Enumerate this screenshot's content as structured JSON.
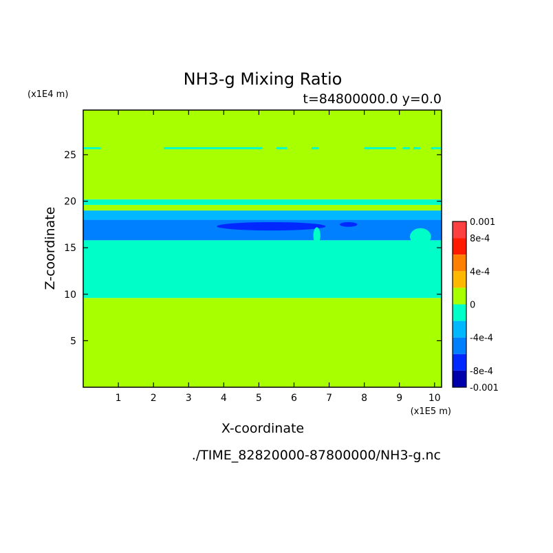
{
  "chart_data": {
    "type": "heatmap",
    "title": "NH3-g Mixing Ratio",
    "subtitle": "t=84800000.0 y=0.0",
    "xlabel": "X-coordinate",
    "ylabel": "Z-coordinate",
    "x_unit": "(x1E5 m)",
    "y_unit": "(x1E4 m)",
    "xlim": [
      0,
      10.2
    ],
    "ylim": [
      0,
      29.8
    ],
    "x_ticks": [
      "1",
      "2",
      "3",
      "4",
      "5",
      "6",
      "7",
      "8",
      "9",
      "10"
    ],
    "y_ticks": [
      "5",
      "10",
      "15",
      "20",
      "25"
    ],
    "source": "./TIME_82820000-87800000/NH3-g.nc",
    "colorbar": {
      "labels": [
        "0.001",
        "8e-4",
        "4e-4",
        "0",
        "-4e-4",
        "-8e-4",
        "-0.001"
      ],
      "label_values": [
        0.001,
        0.0008,
        0.0004,
        0,
        -0.0004,
        -0.0008,
        -0.001
      ],
      "levels": [
        {
          "min": 0.0008,
          "max": 0.001,
          "color": "#ff4040"
        },
        {
          "min": 0.0006,
          "max": 0.0008,
          "color": "#ff1a00"
        },
        {
          "min": 0.0004,
          "max": 0.0006,
          "color": "#ff8000"
        },
        {
          "min": 0.0002,
          "max": 0.0004,
          "color": "#ffb800"
        },
        {
          "min": 0,
          "max": 0.0002,
          "color": "#a8ff00"
        },
        {
          "min": -0.0002,
          "max": 0,
          "color": "#00ffc8"
        },
        {
          "min": -0.0004,
          "max": -0.0002,
          "color": "#00b8ff"
        },
        {
          "min": -0.0006,
          "max": -0.0004,
          "color": "#0080ff"
        },
        {
          "min": -0.0008,
          "max": -0.0006,
          "color": "#0028ff"
        },
        {
          "min": -0.001,
          "max": -0.0008,
          "color": "#0000aa"
        }
      ]
    },
    "bands": [
      {
        "z_min": 0,
        "z_max": 9.6,
        "level": 4
      },
      {
        "z_min": 9.6,
        "z_max": 15.8,
        "level": 5
      },
      {
        "z_min": 15.8,
        "z_max": 18.0,
        "level": 7
      },
      {
        "z_min": 18.0,
        "z_max": 19.0,
        "level": 6
      },
      {
        "z_min": 19.0,
        "z_max": 19.6,
        "level": 4
      },
      {
        "z_min": 19.6,
        "z_max": 20.2,
        "level": 5
      },
      {
        "z_min": 20.2,
        "z_max": 29.8,
        "level": 4
      }
    ],
    "features": [
      {
        "kind": "dash-line",
        "z": 25.7,
        "level": 5,
        "segments": [
          [
            0,
            0.5
          ],
          [
            2.3,
            3.0
          ],
          [
            2.7,
            5.1
          ],
          [
            5.5,
            5.8
          ],
          [
            6.5,
            6.7
          ],
          [
            8.0,
            8.9
          ],
          [
            9.1,
            9.3
          ],
          [
            9.4,
            9.6
          ],
          [
            9.9,
            10.2
          ]
        ]
      },
      {
        "kind": "blob",
        "level": 8,
        "x_min": 3.8,
        "x_max": 6.9,
        "z_center": 17.3,
        "half_height": 0.45
      },
      {
        "kind": "blob",
        "level": 8,
        "x_min": 7.3,
        "x_max": 7.8,
        "z_center": 17.5,
        "half_height": 0.25
      },
      {
        "kind": "blob",
        "level": 5,
        "x_min": 9.3,
        "x_max": 9.9,
        "z_center": 16.2,
        "half_height": 0.9
      },
      {
        "kind": "blob",
        "level": 5,
        "x_min": 6.55,
        "x_max": 6.75,
        "z_center": 16.3,
        "half_height": 0.9
      }
    ]
  }
}
